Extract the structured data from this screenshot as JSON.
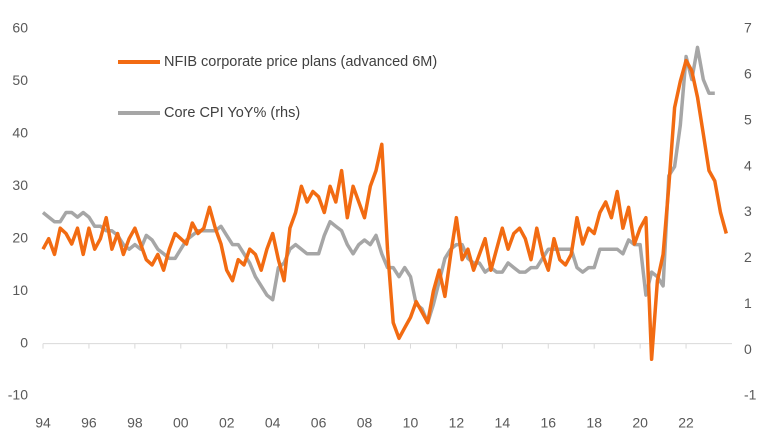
{
  "chart_data": {
    "type": "line",
    "x": [
      1994,
      1994.25,
      1994.5,
      1994.75,
      1995,
      1995.25,
      1995.5,
      1995.75,
      1996,
      1996.25,
      1996.5,
      1996.75,
      1997,
      1997.25,
      1997.5,
      1997.75,
      1998,
      1998.25,
      1998.5,
      1998.75,
      1999,
      1999.25,
      1999.5,
      1999.75,
      2000,
      2000.25,
      2000.5,
      2000.75,
      2001,
      2001.25,
      2001.5,
      2001.75,
      2002,
      2002.25,
      2002.5,
      2002.75,
      2003,
      2003.25,
      2003.5,
      2003.75,
      2004,
      2004.25,
      2004.5,
      2004.75,
      2005,
      2005.25,
      2005.5,
      2005.75,
      2006,
      2006.25,
      2006.5,
      2006.75,
      2007,
      2007.25,
      2007.5,
      2007.75,
      2008,
      2008.25,
      2008.5,
      2008.75,
      2009,
      2009.25,
      2009.5,
      2009.75,
      2010,
      2010.25,
      2010.5,
      2010.75,
      2011,
      2011.25,
      2011.5,
      2011.75,
      2012,
      2012.25,
      2012.5,
      2012.75,
      2013,
      2013.25,
      2013.5,
      2013.75,
      2014,
      2014.25,
      2014.5,
      2014.75,
      2015,
      2015.25,
      2015.5,
      2015.75,
      2016,
      2016.25,
      2016.5,
      2016.75,
      2017,
      2017.25,
      2017.5,
      2017.75,
      2018,
      2018.25,
      2018.5,
      2018.75,
      2019,
      2019.25,
      2019.5,
      2019.75,
      2020,
      2020.25,
      2020.5,
      2020.75,
      2021,
      2021.25,
      2021.5,
      2021.75,
      2022,
      2022.25,
      2022.5,
      2022.75,
      2023,
      2023.25,
      2023.5,
      2023.75
    ],
    "series": [
      {
        "name": "NFIB corporate price plans (advanced 6M)",
        "color": "#f26b12",
        "values": [
          18,
          20,
          17,
          22,
          21,
          19,
          22,
          17,
          22,
          18,
          20,
          24,
          18,
          21,
          17,
          20,
          22,
          19,
          16,
          15,
          17,
          14,
          18,
          21,
          20,
          19,
          23,
          21,
          22,
          26,
          22,
          19,
          14,
          12,
          16,
          15,
          18,
          17,
          14,
          18,
          21,
          16,
          12,
          22,
          25,
          30,
          27,
          29,
          28,
          25,
          30,
          27,
          33,
          24,
          30,
          27,
          24,
          30,
          33,
          38,
          18,
          4,
          1,
          3,
          5,
          8,
          6,
          4,
          10,
          14,
          9,
          17,
          24,
          16,
          18,
          14,
          17,
          20,
          14,
          18,
          22,
          18,
          21,
          22,
          20,
          16,
          22,
          17,
          14,
          20,
          16,
          15,
          17,
          24,
          19,
          22,
          21,
          25,
          27,
          24,
          29,
          22,
          26,
          19,
          22,
          24,
          -3,
          12,
          17,
          30,
          45,
          50,
          54,
          52,
          47,
          40,
          33,
          31,
          25,
          21
        ]
      },
      {
        "name": "Core CPI YoY% (rhs)",
        "color": "#a6a6a6",
        "axis": "y2",
        "values": [
          3.0,
          2.9,
          2.8,
          2.8,
          3.0,
          3.0,
          2.9,
          3.0,
          2.9,
          2.7,
          2.7,
          2.6,
          2.6,
          2.5,
          2.3,
          2.2,
          2.3,
          2.2,
          2.5,
          2.4,
          2.2,
          2.1,
          2.0,
          2.0,
          2.2,
          2.4,
          2.5,
          2.6,
          2.6,
          2.6,
          2.6,
          2.7,
          2.5,
          2.3,
          2.3,
          2.1,
          1.9,
          1.6,
          1.4,
          1.2,
          1.1,
          1.8,
          1.9,
          2.2,
          2.3,
          2.2,
          2.1,
          2.1,
          2.1,
          2.5,
          2.8,
          2.7,
          2.6,
          2.3,
          2.1,
          2.3,
          2.4,
          2.3,
          2.5,
          2.1,
          1.8,
          1.8,
          1.6,
          1.8,
          1.6,
          1.0,
          0.9,
          0.6,
          1.0,
          1.5,
          2.0,
          2.2,
          2.3,
          2.3,
          2.0,
          1.9,
          1.9,
          1.7,
          1.8,
          1.7,
          1.7,
          1.9,
          1.8,
          1.7,
          1.7,
          1.8,
          1.8,
          2.0,
          2.2,
          2.2,
          2.2,
          2.2,
          2.2,
          1.8,
          1.7,
          1.8,
          1.8,
          2.2,
          2.2,
          2.2,
          2.2,
          2.1,
          2.4,
          2.3,
          2.3,
          1.2,
          1.7,
          1.6,
          1.4,
          3.8,
          4.0,
          4.9,
          6.4,
          5.9,
          6.6,
          5.9,
          5.6,
          5.6,
          null,
          null
        ]
      }
    ],
    "xlim": [
      1994,
      2024
    ],
    "xticks": [
      {
        "value": 1994,
        "label": "94"
      },
      {
        "value": 1996,
        "label": "96"
      },
      {
        "value": 1998,
        "label": "98"
      },
      {
        "value": 2000,
        "label": "00"
      },
      {
        "value": 2002,
        "label": "02"
      },
      {
        "value": 2004,
        "label": "04"
      },
      {
        "value": 2006,
        "label": "06"
      },
      {
        "value": 2008,
        "label": "08"
      },
      {
        "value": 2010,
        "label": "10"
      },
      {
        "value": 2012,
        "label": "12"
      },
      {
        "value": 2014,
        "label": "14"
      },
      {
        "value": 2016,
        "label": "16"
      },
      {
        "value": 2018,
        "label": "18"
      },
      {
        "value": 2020,
        "label": "20"
      },
      {
        "value": 2022,
        "label": "22"
      }
    ],
    "ylim": [
      -10,
      60
    ],
    "yticks": [
      -10,
      0,
      10,
      20,
      30,
      40,
      50,
      60
    ],
    "y2lim": [
      -1,
      7
    ],
    "y2ticks": [
      -1,
      0,
      1,
      2,
      3,
      4,
      5,
      6,
      7
    ],
    "legend": "upper left"
  }
}
